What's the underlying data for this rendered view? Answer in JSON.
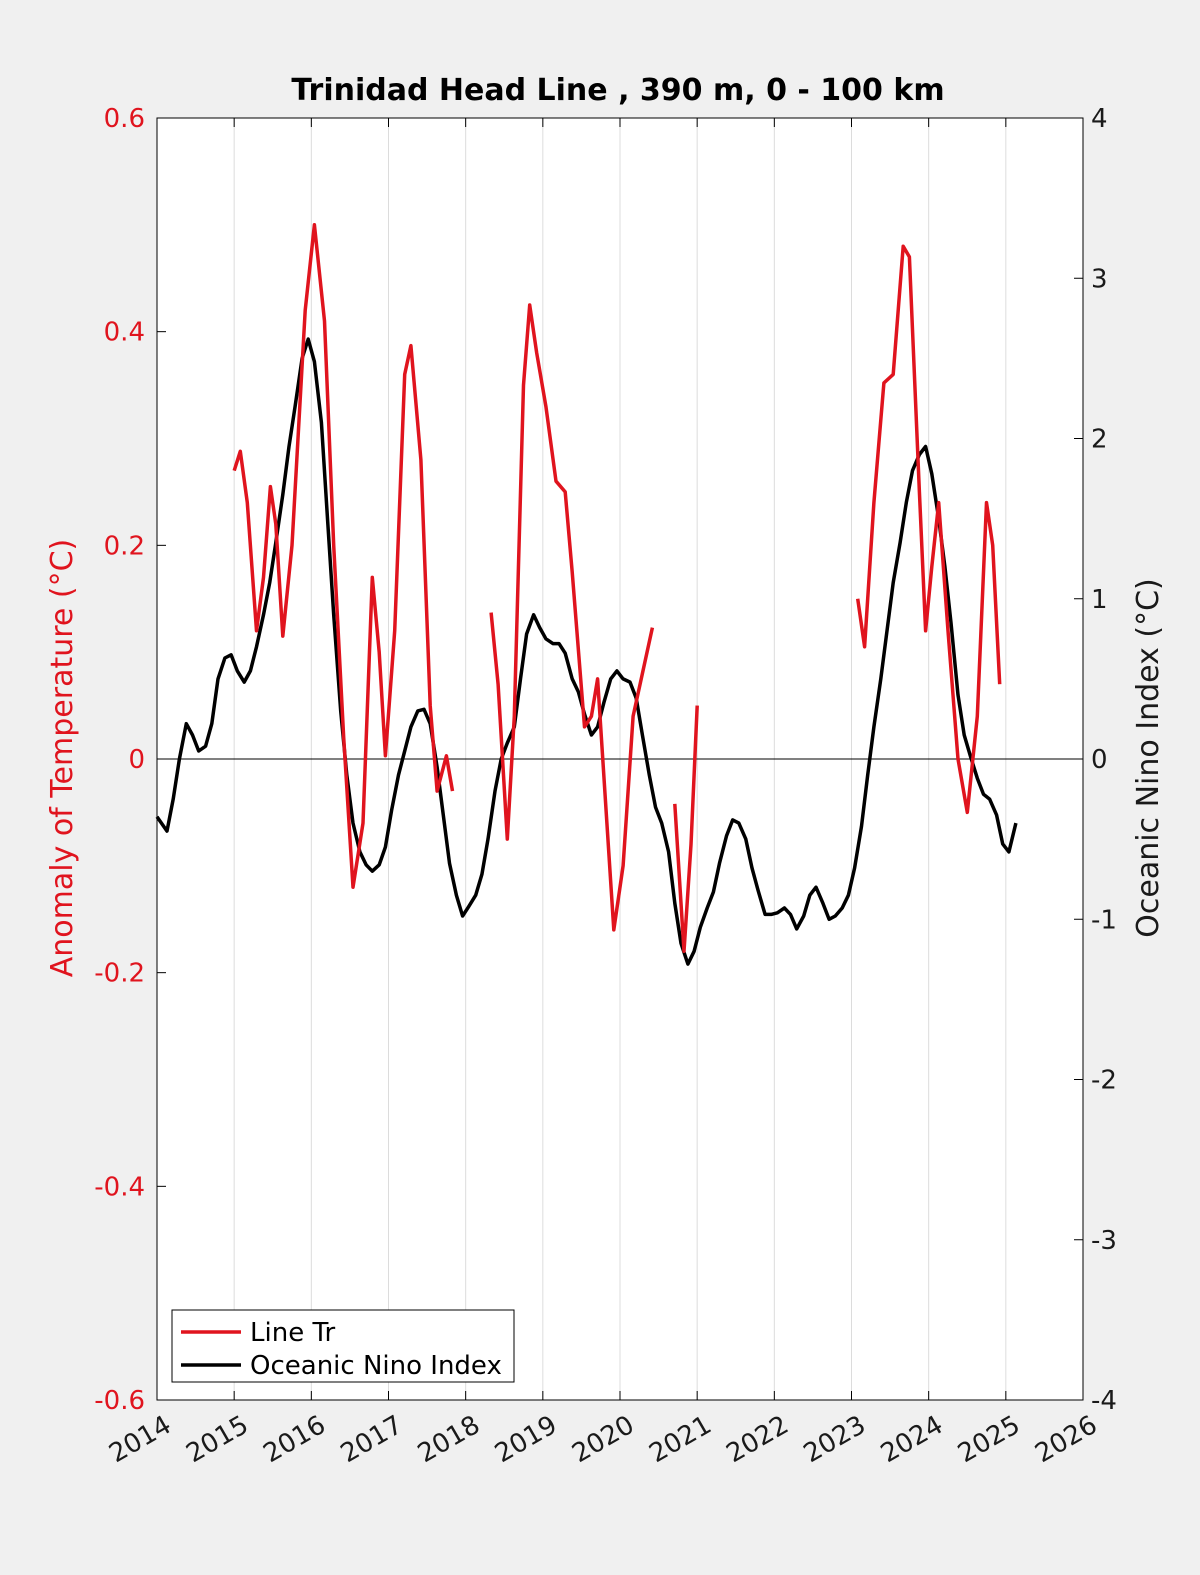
{
  "colors": {
    "background": "#f0f0f0",
    "plot_background": "#ffffff",
    "temperature_series": "#e0141e",
    "oni_series": "#000000",
    "grid": "#dcdcdc"
  },
  "chart_data": {
    "type": "line",
    "title": "Trinidad Head Line , 390 m, 0 - 100 km",
    "ylabel_left": "Anomaly of Temperature (°C)",
    "ylabel_right": "Oceanic Nino Index (°C)",
    "xlim": [
      2014,
      2026
    ],
    "ylim_left": [
      -0.6,
      0.6
    ],
    "ylim_right": [
      -4,
      4
    ],
    "x_ticks": [
      "2014",
      "2015",
      "2016",
      "2017",
      "2018",
      "2019",
      "2020",
      "2021",
      "2022",
      "2023",
      "2024",
      "2025",
      "2026"
    ],
    "y_ticks_left": [
      "-0.6",
      "-0.4",
      "-0.2",
      "0",
      "0.2",
      "0.4",
      "0.6"
    ],
    "y_ticks_right": [
      "-4",
      "-3",
      "-2",
      "-1",
      "0",
      "1",
      "2",
      "3",
      "4"
    ],
    "vertical_grid": true,
    "horizontal_grid": false,
    "zero_line": true,
    "legend": {
      "position": "bottom-left",
      "entries": [
        "Line Tr",
        "Oceanic Nino Index"
      ]
    },
    "series": [
      {
        "name": "Line Tr",
        "axis": "left",
        "color": "#e0141e",
        "segments": [
          [
            [
              2015.0,
              0.27
            ],
            [
              2015.08,
              0.288
            ],
            [
              2015.17,
              0.24
            ],
            [
              2015.29,
              0.12
            ],
            [
              2015.38,
              0.17
            ],
            [
              2015.47,
              0.255
            ],
            [
              2015.54,
              0.22
            ],
            [
              2015.63,
              0.115
            ],
            [
              2015.75,
              0.2
            ],
            [
              2015.92,
              0.42
            ],
            [
              2016.04,
              0.5
            ],
            [
              2016.17,
              0.41
            ],
            [
              2016.29,
              0.2
            ],
            [
              2016.42,
              0.02
            ],
            [
              2016.54,
              -0.12
            ],
            [
              2016.67,
              -0.06
            ],
            [
              2016.79,
              0.17
            ],
            [
              2016.88,
              0.1
            ],
            [
              2016.96,
              0.003
            ],
            [
              2017.08,
              0.12
            ],
            [
              2017.21,
              0.36
            ],
            [
              2017.29,
              0.387
            ],
            [
              2017.42,
              0.28
            ],
            [
              2017.54,
              0.05
            ],
            [
              2017.63,
              -0.03
            ],
            [
              2017.75,
              0.003
            ],
            [
              2017.83,
              -0.03
            ]
          ],
          [
            [
              2018.33,
              0.137
            ],
            [
              2018.42,
              0.07
            ],
            [
              2018.54,
              -0.075
            ],
            [
              2018.63,
              0.04
            ],
            [
              2018.75,
              0.35
            ],
            [
              2018.83,
              0.425
            ],
            [
              2018.92,
              0.38
            ],
            [
              2019.04,
              0.33
            ],
            [
              2019.17,
              0.26
            ],
            [
              2019.29,
              0.25
            ],
            [
              2019.38,
              0.175
            ],
            [
              2019.54,
              0.03
            ],
            [
              2019.63,
              0.04
            ],
            [
              2019.71,
              0.075
            ],
            [
              2019.83,
              -0.06
            ],
            [
              2019.92,
              -0.16
            ],
            [
              2020.04,
              -0.1
            ],
            [
              2020.17,
              0.04
            ],
            [
              2020.29,
              0.08
            ],
            [
              2020.42,
              0.123
            ]
          ],
          [
            [
              2020.71,
              -0.042
            ],
            [
              2020.83,
              -0.18
            ],
            [
              2020.92,
              -0.08
            ],
            [
              2021.0,
              0.05
            ]
          ],
          [
            [
              2023.08,
              0.15
            ],
            [
              2023.17,
              0.105
            ],
            [
              2023.29,
              0.24
            ],
            [
              2023.42,
              0.352
            ],
            [
              2023.54,
              0.36
            ],
            [
              2023.67,
              0.48
            ],
            [
              2023.75,
              0.47
            ],
            [
              2023.88,
              0.25
            ],
            [
              2023.96,
              0.12
            ],
            [
              2024.04,
              0.18
            ],
            [
              2024.13,
              0.24
            ],
            [
              2024.25,
              0.12
            ],
            [
              2024.38,
              0.0
            ],
            [
              2024.5,
              -0.05
            ],
            [
              2024.63,
              0.04
            ],
            [
              2024.75,
              0.24
            ],
            [
              2024.83,
              0.2
            ],
            [
              2024.92,
              0.07
            ]
          ]
        ]
      },
      {
        "name": "Oceanic Nino Index",
        "axis": "right",
        "color": "#000000",
        "segments": [
          [
            [
              2014.0,
              -0.36
            ],
            [
              2014.13,
              -0.45
            ],
            [
              2014.21,
              -0.25
            ],
            [
              2014.29,
              0.0
            ],
            [
              2014.38,
              0.22
            ],
            [
              2014.46,
              0.15
            ],
            [
              2014.54,
              0.05
            ],
            [
              2014.63,
              0.08
            ],
            [
              2014.71,
              0.22
            ],
            [
              2014.79,
              0.5
            ],
            [
              2014.88,
              0.63
            ],
            [
              2014.96,
              0.65
            ],
            [
              2015.04,
              0.55
            ],
            [
              2015.13,
              0.48
            ],
            [
              2015.21,
              0.55
            ],
            [
              2015.29,
              0.7
            ],
            [
              2015.38,
              0.9
            ],
            [
              2015.46,
              1.1
            ],
            [
              2015.54,
              1.35
            ],
            [
              2015.63,
              1.65
            ],
            [
              2015.71,
              1.95
            ],
            [
              2015.79,
              2.2
            ],
            [
              2015.88,
              2.5
            ],
            [
              2015.96,
              2.62
            ],
            [
              2016.04,
              2.48
            ],
            [
              2016.13,
              2.1
            ],
            [
              2016.21,
              1.5
            ],
            [
              2016.29,
              0.9
            ],
            [
              2016.38,
              0.3
            ],
            [
              2016.46,
              -0.1
            ],
            [
              2016.54,
              -0.4
            ],
            [
              2016.63,
              -0.58
            ],
            [
              2016.71,
              -0.66
            ],
            [
              2016.79,
              -0.7
            ],
            [
              2016.88,
              -0.66
            ],
            [
              2016.96,
              -0.55
            ],
            [
              2017.04,
              -0.32
            ],
            [
              2017.13,
              -0.1
            ],
            [
              2017.21,
              0.05
            ],
            [
              2017.29,
              0.2
            ],
            [
              2017.38,
              0.3
            ],
            [
              2017.46,
              0.31
            ],
            [
              2017.54,
              0.22
            ],
            [
              2017.63,
              -0.05
            ],
            [
              2017.71,
              -0.35
            ],
            [
              2017.79,
              -0.65
            ],
            [
              2017.88,
              -0.85
            ],
            [
              2017.96,
              -0.98
            ],
            [
              2018.04,
              -0.92
            ],
            [
              2018.13,
              -0.85
            ],
            [
              2018.21,
              -0.72
            ],
            [
              2018.29,
              -0.5
            ],
            [
              2018.38,
              -0.2
            ],
            [
              2018.46,
              0.0
            ],
            [
              2018.54,
              0.1
            ],
            [
              2018.63,
              0.2
            ],
            [
              2018.71,
              0.5
            ],
            [
              2018.79,
              0.78
            ],
            [
              2018.88,
              0.9
            ],
            [
              2018.96,
              0.82
            ],
            [
              2019.04,
              0.75
            ],
            [
              2019.13,
              0.72
            ],
            [
              2019.21,
              0.72
            ],
            [
              2019.29,
              0.66
            ],
            [
              2019.38,
              0.5
            ],
            [
              2019.46,
              0.42
            ],
            [
              2019.54,
              0.28
            ],
            [
              2019.63,
              0.15
            ],
            [
              2019.71,
              0.2
            ],
            [
              2019.79,
              0.35
            ],
            [
              2019.88,
              0.5
            ],
            [
              2019.96,
              0.55
            ],
            [
              2020.04,
              0.5
            ],
            [
              2020.13,
              0.48
            ],
            [
              2020.21,
              0.38
            ],
            [
              2020.29,
              0.15
            ],
            [
              2020.38,
              -0.1
            ],
            [
              2020.46,
              -0.3
            ],
            [
              2020.54,
              -0.4
            ],
            [
              2020.63,
              -0.58
            ],
            [
              2020.71,
              -0.9
            ],
            [
              2020.79,
              -1.15
            ],
            [
              2020.88,
              -1.28
            ],
            [
              2020.96,
              -1.2
            ],
            [
              2021.04,
              -1.05
            ],
            [
              2021.13,
              -0.93
            ],
            [
              2021.21,
              -0.83
            ],
            [
              2021.29,
              -0.65
            ],
            [
              2021.38,
              -0.48
            ],
            [
              2021.46,
              -0.38
            ],
            [
              2021.54,
              -0.4
            ],
            [
              2021.63,
              -0.5
            ],
            [
              2021.71,
              -0.68
            ],
            [
              2021.79,
              -0.82
            ],
            [
              2021.88,
              -0.97
            ],
            [
              2021.96,
              -0.97
            ],
            [
              2022.04,
              -0.96
            ],
            [
              2022.13,
              -0.93
            ],
            [
              2022.21,
              -0.97
            ],
            [
              2022.29,
              -1.06
            ],
            [
              2022.38,
              -0.98
            ],
            [
              2022.46,
              -0.85
            ],
            [
              2022.54,
              -0.8
            ],
            [
              2022.63,
              -0.9
            ],
            [
              2022.71,
              -1.0
            ],
            [
              2022.79,
              -0.98
            ],
            [
              2022.88,
              -0.93
            ],
            [
              2022.96,
              -0.85
            ],
            [
              2023.04,
              -0.68
            ],
            [
              2023.13,
              -0.42
            ],
            [
              2023.21,
              -0.1
            ],
            [
              2023.29,
              0.2
            ],
            [
              2023.38,
              0.5
            ],
            [
              2023.46,
              0.8
            ],
            [
              2023.54,
              1.1
            ],
            [
              2023.63,
              1.35
            ],
            [
              2023.71,
              1.6
            ],
            [
              2023.79,
              1.8
            ],
            [
              2023.88,
              1.9
            ],
            [
              2023.96,
              1.95
            ],
            [
              2024.04,
              1.78
            ],
            [
              2024.13,
              1.5
            ],
            [
              2024.21,
              1.2
            ],
            [
              2024.29,
              0.85
            ],
            [
              2024.38,
              0.4
            ],
            [
              2024.46,
              0.15
            ],
            [
              2024.54,
              0.02
            ],
            [
              2024.63,
              -0.12
            ],
            [
              2024.71,
              -0.22
            ],
            [
              2024.79,
              -0.25
            ],
            [
              2024.88,
              -0.35
            ],
            [
              2024.96,
              -0.53
            ],
            [
              2025.04,
              -0.58
            ],
            [
              2025.13,
              -0.4
            ]
          ]
        ]
      }
    ]
  }
}
